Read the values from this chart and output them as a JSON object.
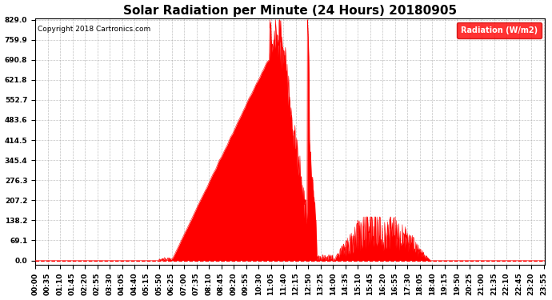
{
  "title": "Solar Radiation per Minute (24 Hours) 20180905",
  "copyright": "Copyright 2018 Cartronics.com",
  "legend_label": "Radiation (W/m2)",
  "yticks": [
    0.0,
    69.1,
    138.2,
    207.2,
    276.3,
    345.4,
    414.5,
    483.6,
    552.7,
    621.8,
    690.8,
    759.9,
    829.0
  ],
  "ymax": 829.0,
  "fill_color": "#FF0000",
  "line_color": "#FF0000",
  "background_color": "#FFFFFF",
  "grid_color": "#999999",
  "legend_bg": "#FF0000",
  "legend_text_color": "#FFFFFF",
  "dashed_zero_color": "#FF0000",
  "title_fontsize": 11,
  "tick_label_fontsize": 6.5,
  "figwidth": 6.9,
  "figheight": 3.75,
  "dpi": 100
}
